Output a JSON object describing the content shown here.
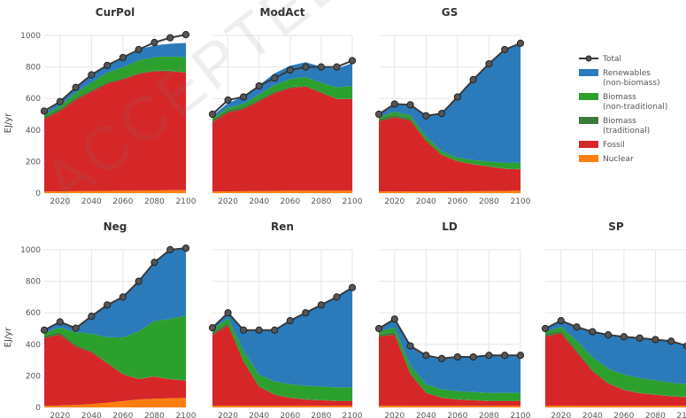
{
  "chart_data": {
    "type": "area",
    "stacked": true,
    "x": [
      2010,
      2020,
      2030,
      2040,
      2050,
      2060,
      2070,
      2080,
      2090,
      2100
    ],
    "xticks": [
      2020,
      2040,
      2060,
      2080,
      2100
    ],
    "ylim": [
      0,
      1000
    ],
    "yticks": [
      0,
      200,
      400,
      600,
      800,
      1000
    ],
    "ylabel": "EJ/yr",
    "grid": true,
    "legend": {
      "placement": "right",
      "entries": [
        {
          "key": "total",
          "label": [
            "Total"
          ],
          "color": "#3a3a3a"
        },
        {
          "key": "renew",
          "label": [
            "Renewables",
            "(non-biomass)"
          ],
          "color": "#2b7bba"
        },
        {
          "key": "biont",
          "label": [
            "Biomass",
            "(non-traditional)"
          ],
          "color": "#2ca02c"
        },
        {
          "key": "biot",
          "label": [
            "Biomass",
            "(traditional)"
          ],
          "color": "#3a7a3a"
        },
        {
          "key": "fossil",
          "label": [
            "Fossil"
          ],
          "color": "#d62728"
        },
        {
          "key": "nuclear",
          "label": [
            "Nuclear"
          ],
          "color": "#ff7f0e"
        }
      ]
    },
    "panels": [
      {
        "title": "CurPol",
        "series": {
          "nuclear": [
            10,
            11,
            12,
            13,
            14,
            15,
            16,
            17,
            18,
            19
          ],
          "fossil": [
            460,
            510,
            580,
            630,
            680,
            705,
            740,
            755,
            755,
            745
          ],
          "biot": [
            15,
            15,
            14,
            12,
            10,
            8,
            6,
            5,
            4,
            3
          ],
          "biont": [
            10,
            15,
            30,
            45,
            60,
            70,
            80,
            85,
            90,
            95
          ],
          "renew": [
            15,
            25,
            35,
            45,
            50,
            60,
            68,
            75,
            80,
            90
          ]
        },
        "total": [
          520,
          580,
          670,
          750,
          810,
          860,
          910,
          955,
          985,
          1005
        ]
      },
      {
        "title": "ModAct",
        "series": {
          "nuclear": [
            10,
            11,
            12,
            13,
            14,
            15,
            15,
            16,
            16,
            16
          ],
          "fossil": [
            440,
            500,
            520,
            570,
            620,
            650,
            660,
            620,
            580,
            580
          ],
          "biot": [
            15,
            15,
            14,
            12,
            10,
            8,
            6,
            5,
            4,
            3
          ],
          "biont": [
            10,
            15,
            20,
            30,
            40,
            50,
            55,
            60,
            70,
            80
          ],
          "renew": [
            15,
            30,
            45,
            60,
            75,
            85,
            94,
            100,
            120,
            145
          ]
        },
        "total": [
          500,
          590,
          610,
          680,
          730,
          780,
          800,
          800,
          800,
          840
        ]
      },
      {
        "title": "GS",
        "series": {
          "nuclear": [
            10,
            11,
            10,
            10,
            10,
            11,
            12,
            13,
            14,
            15
          ],
          "fossil": [
            445,
            470,
            450,
            320,
            230,
            190,
            170,
            155,
            140,
            135
          ],
          "biot": [
            15,
            15,
            12,
            8,
            5,
            3,
            2,
            2,
            2,
            2
          ],
          "biont": [
            10,
            20,
            20,
            20,
            20,
            20,
            25,
            30,
            35,
            40
          ],
          "renew": [
            20,
            50,
            70,
            130,
            240,
            390,
            510,
            620,
            720,
            760
          ]
        },
        "total": [
          500,
          565,
          560,
          490,
          505,
          610,
          720,
          820,
          910,
          950
        ]
      },
      {
        "title": "Neg",
        "series": {
          "nuclear": [
            10,
            12,
            15,
            20,
            30,
            40,
            50,
            55,
            58,
            60
          ],
          "fossil": [
            430,
            450,
            370,
            330,
            250,
            170,
            130,
            140,
            120,
            110
          ],
          "biot": [
            15,
            15,
            12,
            8,
            5,
            3,
            2,
            2,
            2,
            2
          ],
          "biont": [
            15,
            30,
            80,
            110,
            160,
            230,
            300,
            350,
            380,
            410
          ],
          "renew": [
            20,
            35,
            25,
            110,
            205,
            257,
            318,
            373,
            440,
            428
          ]
        },
        "total": [
          490,
          542,
          502,
          578,
          650,
          700,
          800,
          920,
          1000,
          1010
        ]
      },
      {
        "title": "Ren",
        "series": {
          "nuclear": [
            10,
            11,
            10,
            10,
            10,
            10,
            10,
            10,
            10,
            10
          ],
          "fossil": [
            450,
            510,
            280,
            120,
            70,
            50,
            40,
            35,
            30,
            30
          ],
          "biot": [
            15,
            15,
            10,
            6,
            4,
            3,
            2,
            2,
            2,
            2
          ],
          "biont": [
            15,
            30,
            60,
            70,
            80,
            85,
            85,
            85,
            85,
            85
          ],
          "renew": [
            15,
            34,
            130,
            284,
            326,
            402,
            463,
            518,
            573,
            633
          ]
        },
        "total": [
          505,
          600,
          490,
          490,
          490,
          550,
          600,
          650,
          700,
          760
        ]
      },
      {
        "title": "LD",
        "series": {
          "nuclear": [
            10,
            11,
            10,
            10,
            10,
            10,
            10,
            10,
            10,
            10
          ],
          "fossil": [
            440,
            450,
            200,
            80,
            50,
            40,
            35,
            30,
            30,
            30
          ],
          "biot": [
            15,
            15,
            10,
            6,
            4,
            3,
            2,
            2,
            2,
            2
          ],
          "biont": [
            15,
            30,
            45,
            50,
            50,
            50,
            50,
            50,
            50,
            50
          ],
          "renew": [
            20,
            54,
            125,
            184,
            196,
            217,
            223,
            238,
            238,
            238
          ]
        },
        "total": [
          500,
          560,
          390,
          330,
          310,
          320,
          320,
          330,
          330,
          330
        ]
      },
      {
        "title": "SP",
        "series": {
          "nuclear": [
            10,
            11,
            10,
            10,
            10,
            10,
            10,
            10,
            10,
            10
          ],
          "fossil": [
            440,
            460,
            340,
            220,
            140,
            100,
            80,
            70,
            60,
            55
          ],
          "biot": [
            15,
            15,
            12,
            8,
            5,
            3,
            2,
            2,
            2,
            2
          ],
          "biont": [
            15,
            25,
            60,
            80,
            90,
            95,
            95,
            90,
            85,
            80
          ],
          "renew": [
            20,
            39,
            88,
            162,
            215,
            240,
            253,
            258,
            263,
            243
          ]
        },
        "total": [
          500,
          550,
          510,
          480,
          460,
          448,
          440,
          430,
          420,
          390
        ]
      }
    ]
  },
  "watermark": "ACCEPTED VERSION SUBJECT TO FINAL COPYEDIT"
}
